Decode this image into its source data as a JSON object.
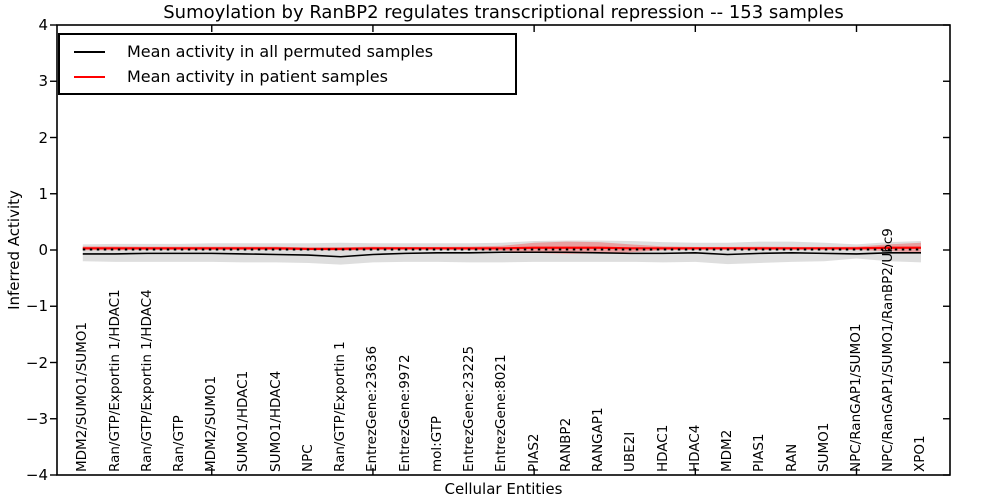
{
  "chart_data": {
    "type": "line",
    "title": "Sumoylation by RanBP2 regulates transcriptional repression -- 153 samples",
    "xlabel": "Cellular Entities",
    "ylabel": "Inferred Activity",
    "ylim": [
      -4,
      4
    ],
    "xlim": [
      0.2,
      27.9
    ],
    "yticks": [
      -4,
      -3,
      -2,
      -1,
      0,
      1,
      2,
      3,
      4
    ],
    "xticks": [
      5,
      10,
      15,
      20,
      25
    ],
    "grid": false,
    "legend_position": "upper left",
    "categories": [
      "MDM2/SUMO1/SUMO1",
      "Ran/GTP/Exportin 1/HDAC1",
      "Ran/GTP/Exportin 1/HDAC4",
      "Ran/GTP",
      "MDM2/SUMO1",
      "SUMO1/HDAC1",
      "SUMO1/HDAC4",
      "NPC",
      "Ran/GTP/Exportin 1",
      "EntrezGene:23636",
      "EntrezGene:9972",
      "mol:GTP",
      "EntrezGene:23225",
      "EntrezGene:8021",
      "PIAS2",
      "RANBP2",
      "RANGAP1",
      "UBE2I",
      "HDAC1",
      "HDAC4",
      "MDM2",
      "PIAS1",
      "RAN",
      "SUMO1",
      "NPC/RanGAP1/SUMO1",
      "NPC/RanGAP1/SUMO1/RanBP2/Ubc9",
      "XPO1"
    ],
    "x": [
      1,
      2,
      3,
      4,
      5,
      6,
      7,
      8,
      9,
      10,
      11,
      12,
      13,
      14,
      15,
      16,
      17,
      18,
      19,
      20,
      21,
      22,
      23,
      24,
      25,
      26,
      27
    ],
    "series": [
      {
        "name": "Mean activity in all permuted samples",
        "color": "#000000",
        "values": [
          -0.07,
          -0.07,
          -0.06,
          -0.06,
          -0.06,
          -0.07,
          -0.08,
          -0.09,
          -0.12,
          -0.08,
          -0.06,
          -0.05,
          -0.05,
          -0.04,
          -0.04,
          -0.04,
          -0.05,
          -0.06,
          -0.06,
          -0.05,
          -0.08,
          -0.06,
          -0.05,
          -0.06,
          -0.07,
          -0.05,
          -0.05
        ]
      },
      {
        "name": "Mean activity in patient samples",
        "color": "#ff0000",
        "values": [
          0.03,
          0.03,
          0.03,
          0.03,
          0.03,
          0.03,
          0.03,
          0.02,
          0.02,
          0.03,
          0.03,
          0.03,
          0.03,
          0.03,
          0.04,
          0.04,
          0.04,
          0.03,
          0.03,
          0.03,
          0.03,
          0.03,
          0.03,
          0.03,
          0.03,
          0.04,
          0.04
        ]
      }
    ],
    "bands": [
      {
        "name": "permuted-samples-std-band",
        "color": "#000000",
        "opacity": 0.13,
        "upper": [
          0.1,
          0.11,
          0.11,
          0.11,
          0.12,
          0.12,
          0.12,
          0.12,
          0.13,
          0.12,
          0.12,
          0.12,
          0.12,
          0.13,
          0.16,
          0.17,
          0.17,
          0.16,
          0.14,
          0.13,
          0.13,
          0.15,
          0.15,
          0.13,
          0.1,
          0.14,
          0.16
        ],
        "lower": [
          -0.2,
          -0.21,
          -0.21,
          -0.21,
          -0.21,
          -0.22,
          -0.22,
          -0.23,
          -0.26,
          -0.22,
          -0.21,
          -0.21,
          -0.22,
          -0.22,
          -0.21,
          -0.21,
          -0.21,
          -0.21,
          -0.22,
          -0.21,
          -0.25,
          -0.23,
          -0.21,
          -0.2,
          -0.15,
          -0.2,
          -0.22
        ]
      },
      {
        "name": "patient-samples-std-band",
        "color": "#ff0000",
        "opacity": 0.28,
        "upper": [
          0.065,
          0.065,
          0.06,
          0.06,
          0.06,
          0.06,
          0.06,
          0.045,
          0.05,
          0.06,
          0.055,
          0.055,
          0.06,
          0.075,
          0.13,
          0.15,
          0.14,
          0.1,
          0.065,
          0.055,
          0.055,
          0.06,
          0.055,
          0.055,
          0.06,
          0.1,
          0.13
        ],
        "lower": [
          -0.005,
          -0.005,
          0.0,
          0.0,
          0.0,
          0.0,
          0.0,
          -0.005,
          -0.01,
          0.0,
          0.005,
          0.005,
          0.0,
          -0.015,
          -0.05,
          -0.07,
          -0.06,
          -0.04,
          -0.005,
          0.005,
          0.005,
          0.0,
          0.005,
          0.005,
          0.0,
          -0.02,
          -0.05
        ]
      }
    ],
    "zero_line": {
      "y": 0.01,
      "style": "dotted",
      "color": "#000000"
    }
  }
}
